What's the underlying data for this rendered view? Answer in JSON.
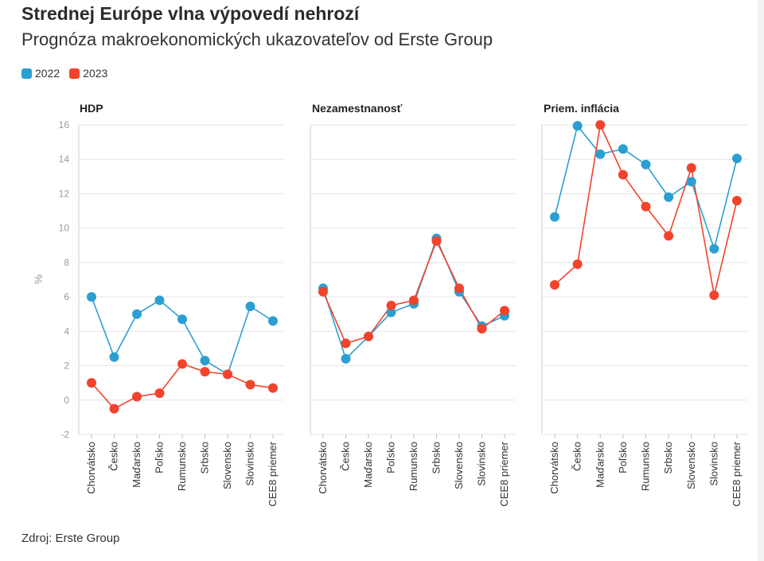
{
  "title": "Strednej Európe vlna výpovedí nehrozí",
  "subtitle": "Prognóza makroekonomických ukazovateľov od Erste Group",
  "source": "Zdroj: Erste Group",
  "colors": {
    "2022": "#2b9fd1",
    "2023": "#f2432c"
  },
  "legend": [
    {
      "label": "2022",
      "color": "#2b9fd1"
    },
    {
      "label": "2023",
      "color": "#f2432c"
    }
  ],
  "chart_data": {
    "type": "line",
    "ylabel": "%",
    "ylim": [
      -2,
      16
    ],
    "yticks": [
      "16",
      "14",
      "12",
      "10",
      "8",
      "6",
      "4",
      "2",
      "0",
      "-2"
    ],
    "grid": true,
    "legend_position": "top-left",
    "panels": [
      {
        "title": "HDP",
        "categories": [
          "Chorvátsko",
          "Česko",
          "Maďarsko",
          "Poľsko",
          "Rumunsko",
          "Srbsko",
          "Slovensko",
          "Slovinsko",
          "CEE8 priemer"
        ],
        "series": [
          {
            "name": "2022",
            "values": [
              6.0,
              2.5,
              5.0,
              5.8,
              4.7,
              2.3,
              1.5,
              5.45,
              4.6
            ]
          },
          {
            "name": "2023",
            "values": [
              1.0,
              -0.5,
              0.2,
              0.4,
              2.1,
              1.65,
              1.5,
              0.9,
              0.7
            ]
          }
        ]
      },
      {
        "title": "Nezamestnanosť",
        "categories": [
          "Chorvátsko",
          "Česko",
          "Maďarsko",
          "Poľsko",
          "Rumunsko",
          "Srbsko",
          "Slovensko",
          "Slovinsko",
          "CEE8 priemer"
        ],
        "series": [
          {
            "name": "2022",
            "values": [
              6.5,
              2.4,
              3.7,
              5.1,
              5.6,
              9.4,
              6.3,
              4.3,
              4.9
            ]
          },
          {
            "name": "2023",
            "values": [
              6.3,
              3.3,
              3.7,
              5.5,
              5.8,
              9.25,
              6.5,
              4.15,
              5.2
            ]
          }
        ]
      },
      {
        "title": "Priem. inflácia",
        "categories": [
          "Chorvátsko",
          "Česko",
          "Maďarsko",
          "Poľsko",
          "Rumunsko",
          "Srbsko",
          "Slovensko",
          "Slovinsko",
          "CEE8 priemer"
        ],
        "series": [
          {
            "name": "2022",
            "values": [
              10.65,
              15.95,
              14.3,
              14.6,
              13.7,
              11.8,
              12.7,
              8.8,
              14.05
            ]
          },
          {
            "name": "2023",
            "values": [
              6.7,
              7.9,
              16.0,
              13.1,
              11.25,
              9.55,
              13.5,
              6.1,
              11.6
            ]
          }
        ]
      }
    ]
  }
}
